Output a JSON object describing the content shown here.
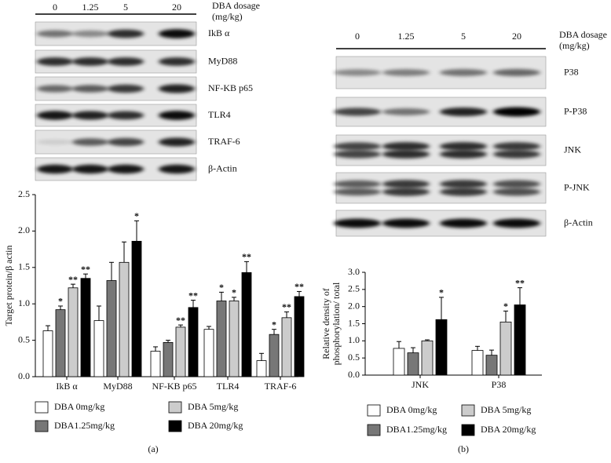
{
  "chart_data": [
    {
      "type": "bar",
      "ylabel": "Target protein/β actin",
      "categories": [
        "IkB α",
        "MyD88",
        "NF-KB p65",
        "TLR4",
        "TRAF-6"
      ],
      "series": [
        {
          "name": "DBA 0mg/kg",
          "color": "#ffffff",
          "values": [
            0.63,
            0.77,
            0.35,
            0.65,
            0.22
          ],
          "errors": [
            0.07,
            0.2,
            0.06,
            0.04,
            0.1
          ],
          "significance": [
            null,
            null,
            null,
            null,
            null
          ]
        },
        {
          "name": "DBA1.25mg/kg",
          "color": "#777777",
          "values": [
            0.92,
            1.32,
            0.47,
            1.04,
            0.58
          ],
          "errors": [
            0.05,
            0.25,
            0.03,
            0.12,
            0.07
          ],
          "significance": [
            "*",
            null,
            null,
            "*",
            "*"
          ]
        },
        {
          "name": "DBA 5mg/kg",
          "color": "#cccccc",
          "values": [
            1.22,
            1.57,
            0.68,
            1.04,
            0.81
          ],
          "errors": [
            0.05,
            0.28,
            0.03,
            0.05,
            0.08
          ],
          "significance": [
            "**",
            null,
            "**",
            "*",
            "**"
          ]
        },
        {
          "name": "DBA 20mg/kg",
          "color": "#000000",
          "values": [
            1.35,
            1.86,
            0.95,
            1.43,
            1.1
          ],
          "errors": [
            0.06,
            0.28,
            0.1,
            0.15,
            0.07
          ],
          "significance": [
            "**",
            "*",
            "**",
            "**",
            "**"
          ]
        }
      ],
      "ylim": [
        0,
        2.5
      ],
      "yticks": [
        {
          "value": 0,
          "label": "0.0"
        },
        0.5,
        {
          "value": 1,
          "label": "1.0"
        },
        1.5,
        {
          "value": 2,
          "label": "2.0"
        },
        2.5
      ],
      "grid": false,
      "panel_label": "(a)"
    },
    {
      "type": "bar",
      "ylabel": [
        "Relative density of",
        "phosphorylation/ total"
      ],
      "categories": [
        "JNK",
        "P38"
      ],
      "series": [
        {
          "name": "DBA 0mg/kg",
          "color": "#ffffff",
          "values": [
            0.78,
            0.72
          ],
          "errors": [
            0.2,
            0.12
          ],
          "significance": [
            null,
            null
          ]
        },
        {
          "name": "DBA1.25mg/kg",
          "color": "#777777",
          "values": [
            0.65,
            0.58
          ],
          "errors": [
            0.15,
            0.15
          ],
          "significance": [
            null,
            null
          ]
        },
        {
          "name": "DBA 5mg/kg",
          "color": "#cccccc",
          "values": [
            1.0,
            1.55
          ],
          "errors": [
            0.03,
            0.32
          ],
          "significance": [
            null,
            "*"
          ]
        },
        {
          "name": "DBA 20mg/kg",
          "color": "#000000",
          "values": [
            1.62,
            2.05
          ],
          "errors": [
            0.65,
            0.5
          ],
          "significance": [
            "*",
            "**"
          ]
        }
      ],
      "ylim": [
        0,
        3
      ],
      "yticks": [
        {
          "value": 0,
          "label": "0.0"
        },
        0.5,
        {
          "value": 1,
          "label": "1.0"
        },
        1.5,
        {
          "value": 2,
          "label": "2.0"
        },
        2.5,
        {
          "value": 3,
          "label": "3.0"
        }
      ],
      "grid": false,
      "panel_label": "(b)"
    }
  ],
  "blots": [
    {
      "dosages": [
        "0",
        "1.25",
        "5",
        "20"
      ],
      "dosage_label": [
        "DBA dosage",
        "(mg/kg)"
      ],
      "rows": [
        "IkB α",
        "MyD88",
        "NF-KB p65",
        "TLR4",
        "TRAF-6",
        "β-Actin"
      ]
    },
    {
      "dosages": [
        "0",
        "1.25",
        "5",
        "20"
      ],
      "dosage_label": [
        "DBA dosage",
        "(mg/kg)"
      ],
      "rows": [
        "P38",
        "P-P38",
        "JNK",
        "P-JNK",
        "β-Actin"
      ]
    }
  ]
}
